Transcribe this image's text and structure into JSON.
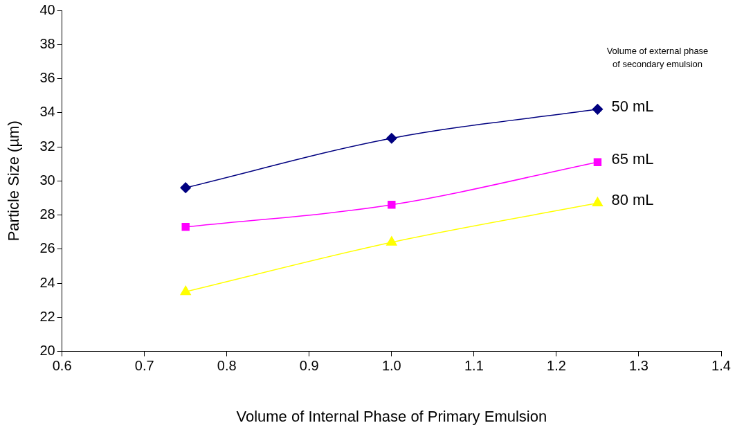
{
  "chart_data": {
    "type": "line",
    "xlabel": "Volume of Internal Phase of Primary Emulsion",
    "ylabel": "Particle Size (µm)",
    "legend_title": "Volume of external phase\nof secondary emulsion",
    "x": [
      0.75,
      1.0,
      1.25
    ],
    "series": [
      {
        "name": "50 mL",
        "color": "#000080",
        "marker": "diamond",
        "values": [
          29.6,
          32.5,
          34.2
        ]
      },
      {
        "name": "65 mL",
        "color": "#ff00ff",
        "marker": "square",
        "values": [
          27.3,
          28.6,
          31.1
        ]
      },
      {
        "name": "80 mL",
        "color": "#ffff00",
        "marker": "triangle",
        "values": [
          23.5,
          26.4,
          28.7
        ]
      }
    ],
    "xlim": [
      0.6,
      1.4
    ],
    "xticks": [
      0.6,
      0.7,
      0.8,
      0.9,
      {
        "value": 1,
        "label": "1.0"
      },
      1.1,
      1.2,
      1.3,
      1.4
    ],
    "ylim": [
      20,
      40
    ],
    "yticks": [
      20,
      22,
      24,
      26,
      28,
      30,
      32,
      34,
      36,
      38,
      40
    ],
    "grid": false,
    "line_style": "solid"
  }
}
